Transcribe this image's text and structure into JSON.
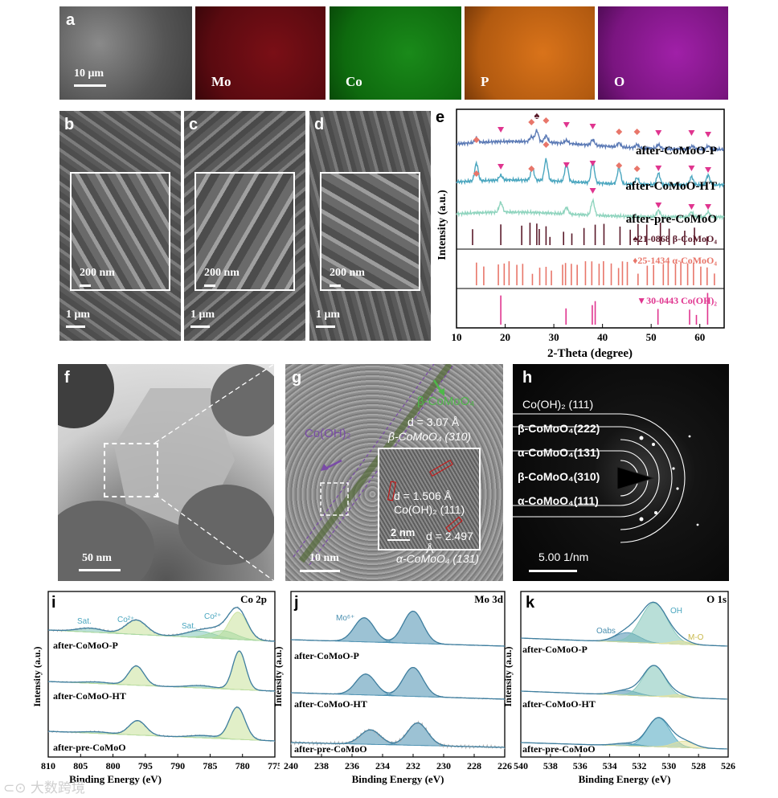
{
  "panels": {
    "a": {
      "label": "a",
      "scale": "10 μm",
      "maps": [
        "Mo",
        "Co",
        "P",
        "O"
      ],
      "map_colors": [
        "#b0121b",
        "#1a9a1a",
        "#d9731a",
        "#a020a8"
      ]
    },
    "b": {
      "label": "b",
      "scale_inset": "200 nm",
      "scale_main": "1 μm"
    },
    "c": {
      "label": "c",
      "scale_inset": "200 nm",
      "scale_main": "1 μm"
    },
    "d": {
      "label": "d",
      "scale_inset": "200 nm",
      "scale_main": "1 μm"
    },
    "f": {
      "label": "f",
      "scale": "50 nm"
    },
    "g": {
      "label": "g",
      "beta_label": "β-CoMoO₄",
      "cooh_label": "Co(OH)₂",
      "d1": "d = 3.07 Å",
      "d1_plane": "β-CoMoO₄ (310)",
      "d2": "d = 1.506 Å",
      "d2_plane": "Co(OH)₂ (111)",
      "d3": "d = 2.497 Å",
      "d3_plane": "α-CoMoO₄ (131)",
      "inset_scale": "2 nm",
      "scale": "10 nm"
    },
    "h": {
      "label": "h",
      "rings": [
        "Co(OH)₂ (111)",
        "β-CoMoO₄(222)",
        "α-CoMoO₄(131)",
        "β-CoMoO₄(310)",
        "α-CoMoO₄(111)"
      ],
      "scale": "5.00 1/nm"
    }
  },
  "watermark": "大数跨境",
  "chart_data": [
    {
      "panel": "e",
      "type": "line",
      "label": "e",
      "xlabel": "2-Theta (degree)",
      "ylabel": "Intensity (a.u.)",
      "xlim": [
        10,
        65
      ],
      "xticks": [
        10,
        20,
        30,
        40,
        50,
        60
      ],
      "series": [
        {
          "name": "after-CoMoO-P",
          "color": "#5a79b5"
        },
        {
          "name": "after-CoMoO-HT",
          "color": "#4aa6bf"
        },
        {
          "name": "after-pre-CoMoO",
          "color": "#8fd4be"
        }
      ],
      "references": [
        {
          "name": "♠21-0868 β-CoMoO₄",
          "color": "#5a1a2a",
          "peaks": [
            13.3,
            19.1,
            23.4,
            25.1,
            26.5,
            27.0,
            28.4,
            29.2,
            32.0,
            33.7,
            36.2,
            38.5,
            40.3,
            43.6,
            45.7,
            47.3,
            49.1,
            51.9,
            53.7,
            56.9,
            58.9,
            61.5
          ]
        },
        {
          "name": "♦25-1434 α-CoMoO₄",
          "color": "#e8766a",
          "peaks": [
            14.1,
            15.6,
            18.6,
            19.8,
            20.8,
            22.4,
            23.6,
            25.6,
            27.1,
            28.4,
            29.5,
            31.8,
            32.4,
            33.6,
            34.8,
            36.5,
            37.8,
            39.3,
            40.2,
            41.8,
            43.3,
            44.1,
            45.1,
            47.3,
            49.2,
            50.5,
            52.5,
            53.5,
            55.0,
            56.1,
            57.5,
            58.7,
            60.2,
            61.5,
            63.0
          ]
        },
        {
          "name": "▼30-0443 Co(OH)₂",
          "color": "#e0358f",
          "peaks": [
            19.1,
            32.5,
            37.9,
            38.5,
            51.4,
            57.9,
            59.3,
            61.6
          ]
        }
      ]
    },
    {
      "panel": "i",
      "type": "line",
      "label": "i",
      "title": "Co 2p",
      "xlabel": "Binding Energy (eV)",
      "ylabel": "Intensity (a.u.)",
      "xlim": [
        810,
        775
      ],
      "xticks": [
        810,
        805,
        800,
        795,
        790,
        785,
        780,
        775
      ],
      "series_names": [
        "after-CoMoO-P",
        "after-CoMoO-HT",
        "after-pre-CoMoO"
      ],
      "peak_labels": [
        "Sat.",
        "Co²⁺",
        "Sat.",
        "Co²⁺"
      ]
    },
    {
      "panel": "j",
      "type": "line",
      "label": "j",
      "title": "Mo 3d",
      "xlabel": "Binding Energy (eV)",
      "ylabel": "Intensity (a.u.)",
      "xlim": [
        240,
        226
      ],
      "xticks": [
        240,
        238,
        236,
        234,
        232,
        230,
        228,
        226
      ],
      "series_names": [
        "after-CoMoO-P",
        "after-CoMoO-HT",
        "after-pre-CoMoO"
      ],
      "peak_labels": [
        "Mo⁶⁺"
      ]
    },
    {
      "panel": "k",
      "type": "line",
      "label": "k",
      "title": "O 1s",
      "xlabel": "Binding Energy (eV)",
      "ylabel": "Intensity (a.u.)",
      "xlim": [
        540,
        526
      ],
      "xticks": [
        540,
        538,
        536,
        534,
        532,
        530,
        528,
        526
      ],
      "series_names": [
        "after-CoMoO-P",
        "after-CoMoO-HT",
        "after-pre-CoMoO"
      ],
      "peak_labels": [
        "Oabs",
        "OH",
        "M-O"
      ]
    }
  ]
}
